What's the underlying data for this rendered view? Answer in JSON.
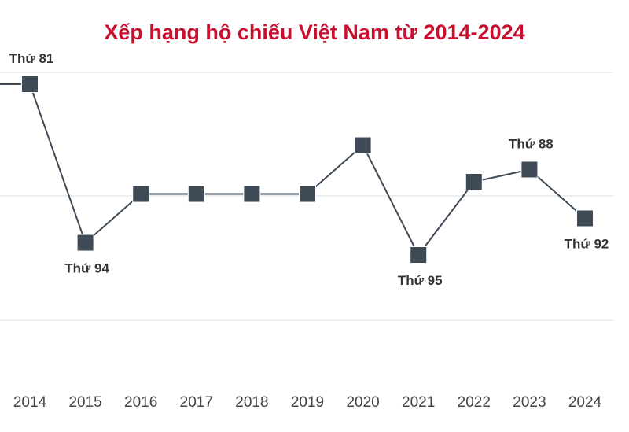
{
  "colors": {
    "title": "#c8102e",
    "line": "#3f4a57",
    "marker": "#3f4a57",
    "grid": "#dfe3e8",
    "label": "#333333",
    "tick": "#444444"
  },
  "chart_data": {
    "type": "line",
    "title": "Xếp hạng hộ chiếu Việt Nam từ 2014-2024",
    "xlabel": "",
    "ylabel": "",
    "x": [
      2014,
      2015,
      2016,
      2017,
      2018,
      2019,
      2020,
      2021,
      2022,
      2023,
      2024
    ],
    "y": [
      81,
      94,
      90,
      90,
      90,
      90,
      86,
      95,
      89,
      88,
      92
    ],
    "y_inverted": true,
    "ylim": [
      80,
      100
    ],
    "grid": true,
    "marker": "square",
    "annotations": [
      {
        "x": 2014,
        "text": "Thứ 81",
        "position": "above"
      },
      {
        "x": 2015,
        "text": "Thứ 94",
        "position": "below"
      },
      {
        "x": 2021,
        "text": "Thứ 95",
        "position": "below"
      },
      {
        "x": 2023,
        "text": "Thứ 88",
        "position": "above"
      },
      {
        "x": 2024,
        "text": "Thứ 92",
        "position": "below"
      }
    ]
  }
}
